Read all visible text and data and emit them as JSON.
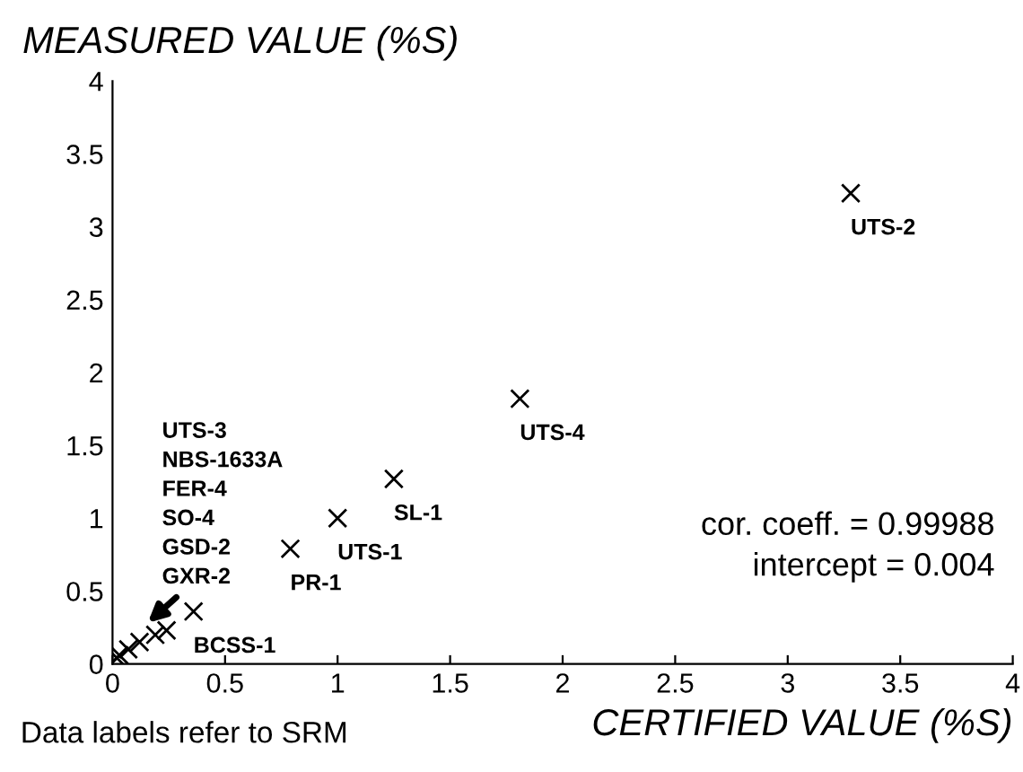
{
  "chart_data": {
    "type": "scatter",
    "xlabel": "CERTIFIED VALUE (%S)",
    "ylabel": "MEASURED VALUE (%S)",
    "x": [
      3.28,
      1.81,
      1.25,
      1.0,
      0.79,
      0.36,
      0.24,
      0.19,
      0.12,
      0.07,
      0.03,
      0.02
    ],
    "series": [
      {
        "color": "#000000",
        "values": [
          3.23,
          1.82,
          1.27,
          1.0,
          0.79,
          0.36,
          0.23,
          0.2,
          0.15,
          0.1,
          0.06,
          0.04
        ]
      }
    ],
    "marker": "cross",
    "grid": false,
    "xlim": [
      0,
      4
    ],
    "ylim": [
      0,
      4
    ],
    "xticks": [
      0,
      0.5,
      1,
      1.5,
      2,
      2.5,
      3,
      3.5,
      4
    ],
    "yticks": [
      0,
      0.5,
      1,
      1.5,
      2,
      2.5,
      3,
      3.5,
      4
    ],
    "annotations": [
      {
        "text": "UTS-2",
        "x": 3.28,
        "y": 3.23
      },
      {
        "text": "UTS-4",
        "x": 1.81,
        "y": 1.82
      },
      {
        "text": "SL-1",
        "x": 1.25,
        "y": 1.27
      },
      {
        "text": "UTS-1",
        "x": 1.0,
        "y": 1.0
      },
      {
        "text": "PR-1",
        "x": 0.79,
        "y": 0.79
      },
      {
        "text": "BCSS-1",
        "x": 0.36,
        "y": 0.36
      },
      "UTS-3",
      "NBS-1633A",
      "FER-4",
      "SO-4",
      "GSD-2",
      "GXR-2",
      "cor. coeff. = 0.99988",
      "intercept = 0.004",
      "Data labels refer to SRM"
    ]
  }
}
